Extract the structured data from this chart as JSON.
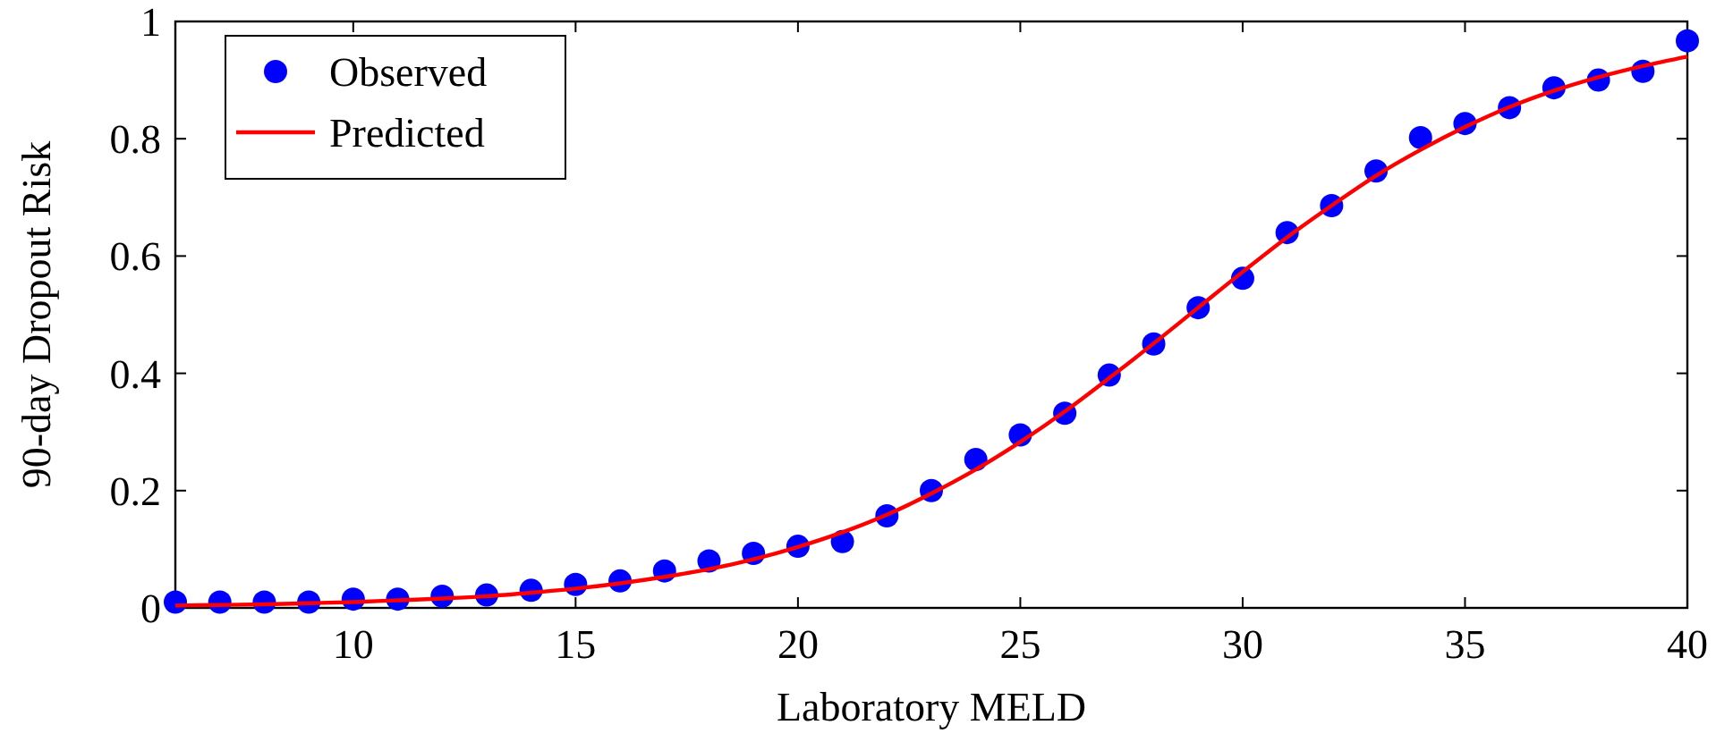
{
  "chart_data": {
    "type": "scatter",
    "xlabel": "Laboratory MELD",
    "ylabel": "90-day Dropout Risk",
    "x": [
      6,
      7,
      8,
      9,
      10,
      11,
      12,
      13,
      14,
      15,
      16,
      17,
      18,
      19,
      20,
      21,
      22,
      23,
      24,
      25,
      26,
      27,
      28,
      29,
      30,
      31,
      32,
      33,
      34,
      35,
      36,
      37,
      38,
      39,
      40
    ],
    "series": [
      {
        "name": "Observed",
        "color": "#0000ff",
        "marker": "circle",
        "values": [
          0.01,
          0.01,
          0.01,
          0.01,
          0.015,
          0.015,
          0.02,
          0.022,
          0.03,
          0.04,
          0.046,
          0.063,
          0.08,
          0.093,
          0.105,
          0.113,
          0.157,
          0.2,
          0.253,
          0.295,
          0.332,
          0.397,
          0.45,
          0.512,
          0.562,
          0.64,
          0.686,
          0.745,
          0.802,
          0.826,
          0.853,
          0.887,
          0.9,
          0.915,
          0.967
        ]
      },
      {
        "name": "Predicted",
        "type": "line",
        "color": "#ff0000",
        "marker": "none",
        "line_style": "solid",
        "values": [
          0.004,
          0.005,
          0.006,
          0.008,
          0.01,
          0.013,
          0.016,
          0.02,
          0.026,
          0.033,
          0.042,
          0.053,
          0.066,
          0.083,
          0.104,
          0.129,
          0.159,
          0.195,
          0.236,
          0.283,
          0.335,
          0.392,
          0.451,
          0.512,
          0.573,
          0.632,
          0.686,
          0.737,
          0.781,
          0.82,
          0.854,
          0.882,
          0.905,
          0.924,
          0.94
        ]
      }
    ],
    "xlim": [
      6,
      40
    ],
    "xticks": [
      10,
      15,
      20,
      25,
      30,
      35,
      40
    ],
    "ylim": [
      0,
      1
    ],
    "yticks": [
      0,
      0.2,
      0.4,
      0.6,
      0.8,
      1
    ],
    "grid": false,
    "legend": "top left"
  }
}
